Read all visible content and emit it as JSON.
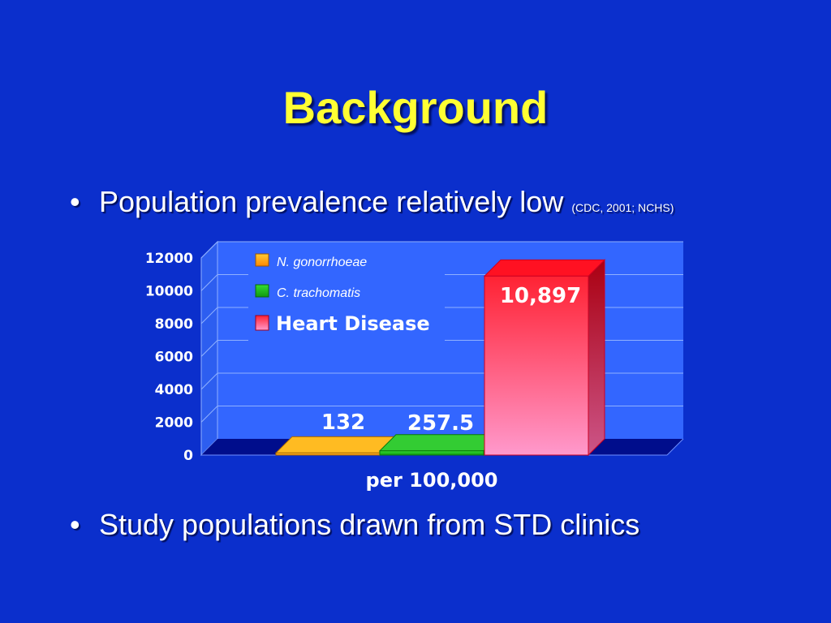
{
  "slide": {
    "title": "Background",
    "bullet1": "Population prevalence relatively low",
    "bullet1_citation": "(CDC, 2001; NCHS)",
    "bullet2": "Study populations drawn from STD clinics",
    "bullet_symbol": "•"
  },
  "colors": {
    "background": "#0b2fcc",
    "title": "#ffff33",
    "plot_wall": "#3366ff",
    "floor": "#000d8c"
  },
  "chart_data": {
    "type": "bar",
    "xlabel": "per 100,000",
    "ylim": [
      0,
      12000
    ],
    "yticks": [
      0,
      2000,
      4000,
      6000,
      8000,
      10000,
      12000
    ],
    "grid": true,
    "legend_position": "top-left",
    "series": [
      {
        "name": "N. gonorrhoeae",
        "value": 132,
        "label": "132",
        "color": "#ffaa00"
      },
      {
        "name": "C. trachomatis",
        "value": 257.5,
        "label": "257.5",
        "color": "#22cc22"
      },
      {
        "name": "Heart Disease",
        "value": 10897,
        "label": "10,897",
        "color": "#ff2233"
      }
    ]
  }
}
